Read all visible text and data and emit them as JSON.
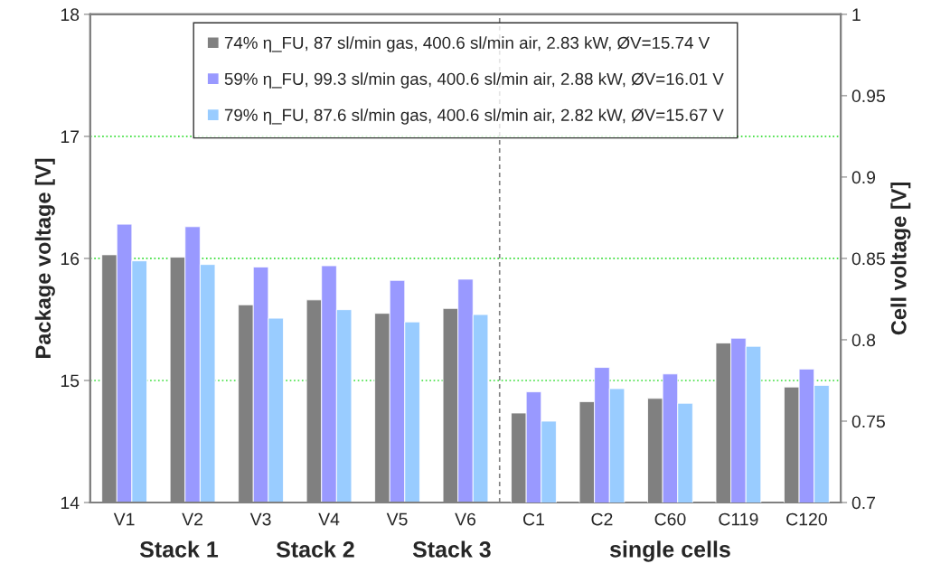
{
  "chart_data": {
    "type": "bar",
    "categories": [
      "V1",
      "V2",
      "V3",
      "V4",
      "V5",
      "V6",
      "C1",
      "C2",
      "C60",
      "C119",
      "C120"
    ],
    "ylabel": "Package voltage [V]",
    "y2label": "Cell voltage [V]",
    "series": [
      {
        "name": "74% η_FU, 87 sl/min gas, 400.6 sl/min air, 2.83 kW, ØV=15.74 V",
        "color": "#808080",
        "values": [
          16.03,
          16.01,
          15.62,
          15.66,
          15.55,
          15.59,
          null,
          null,
          null,
          null,
          null
        ]
      },
      {
        "name": "59% η_FU, 99.3 sl/min gas, 400.6 sl/min air, 2.88 kW, ØV=16.01 V",
        "color": "#9999ff",
        "values": [
          16.28,
          16.26,
          15.93,
          15.94,
          15.82,
          15.83,
          null,
          null,
          null,
          null,
          null
        ]
      },
      {
        "name": "79% η_FU, 87.6 sl/min gas, 400.6 sl/min air, 2.82 kW, ØV=15.67 V",
        "color": "#99ccff",
        "values": [
          15.98,
          15.95,
          15.51,
          15.58,
          15.48,
          15.54,
          null,
          null,
          null,
          null,
          null
        ]
      },
      {
        "color": "#808080",
        "axis": "y2",
        "values": [
          null,
          null,
          null,
          null,
          null,
          null,
          0.755,
          0.762,
          0.764,
          0.798,
          0.771
        ]
      },
      {
        "color": "#9999ff",
        "axis": "y2",
        "values": [
          null,
          null,
          null,
          null,
          null,
          null,
          0.768,
          0.783,
          0.779,
          0.801,
          0.782
        ]
      },
      {
        "color": "#99ccff",
        "axis": "y2",
        "values": [
          null,
          null,
          null,
          null,
          null,
          null,
          0.75,
          0.77,
          0.761,
          0.796,
          0.772
        ]
      }
    ],
    "ylim": [
      14,
      18
    ],
    "yticks": [
      14,
      15,
      16,
      17,
      18
    ],
    "y2lim": [
      0.7,
      1
    ],
    "y2ticks": [
      0.7,
      0.75,
      0.8,
      0.85,
      0.9,
      0.95,
      1
    ],
    "annotations": [
      "Stack 1",
      "Stack 2",
      "Stack 3",
      "single cells"
    ],
    "grid": "y",
    "legend": "top"
  }
}
